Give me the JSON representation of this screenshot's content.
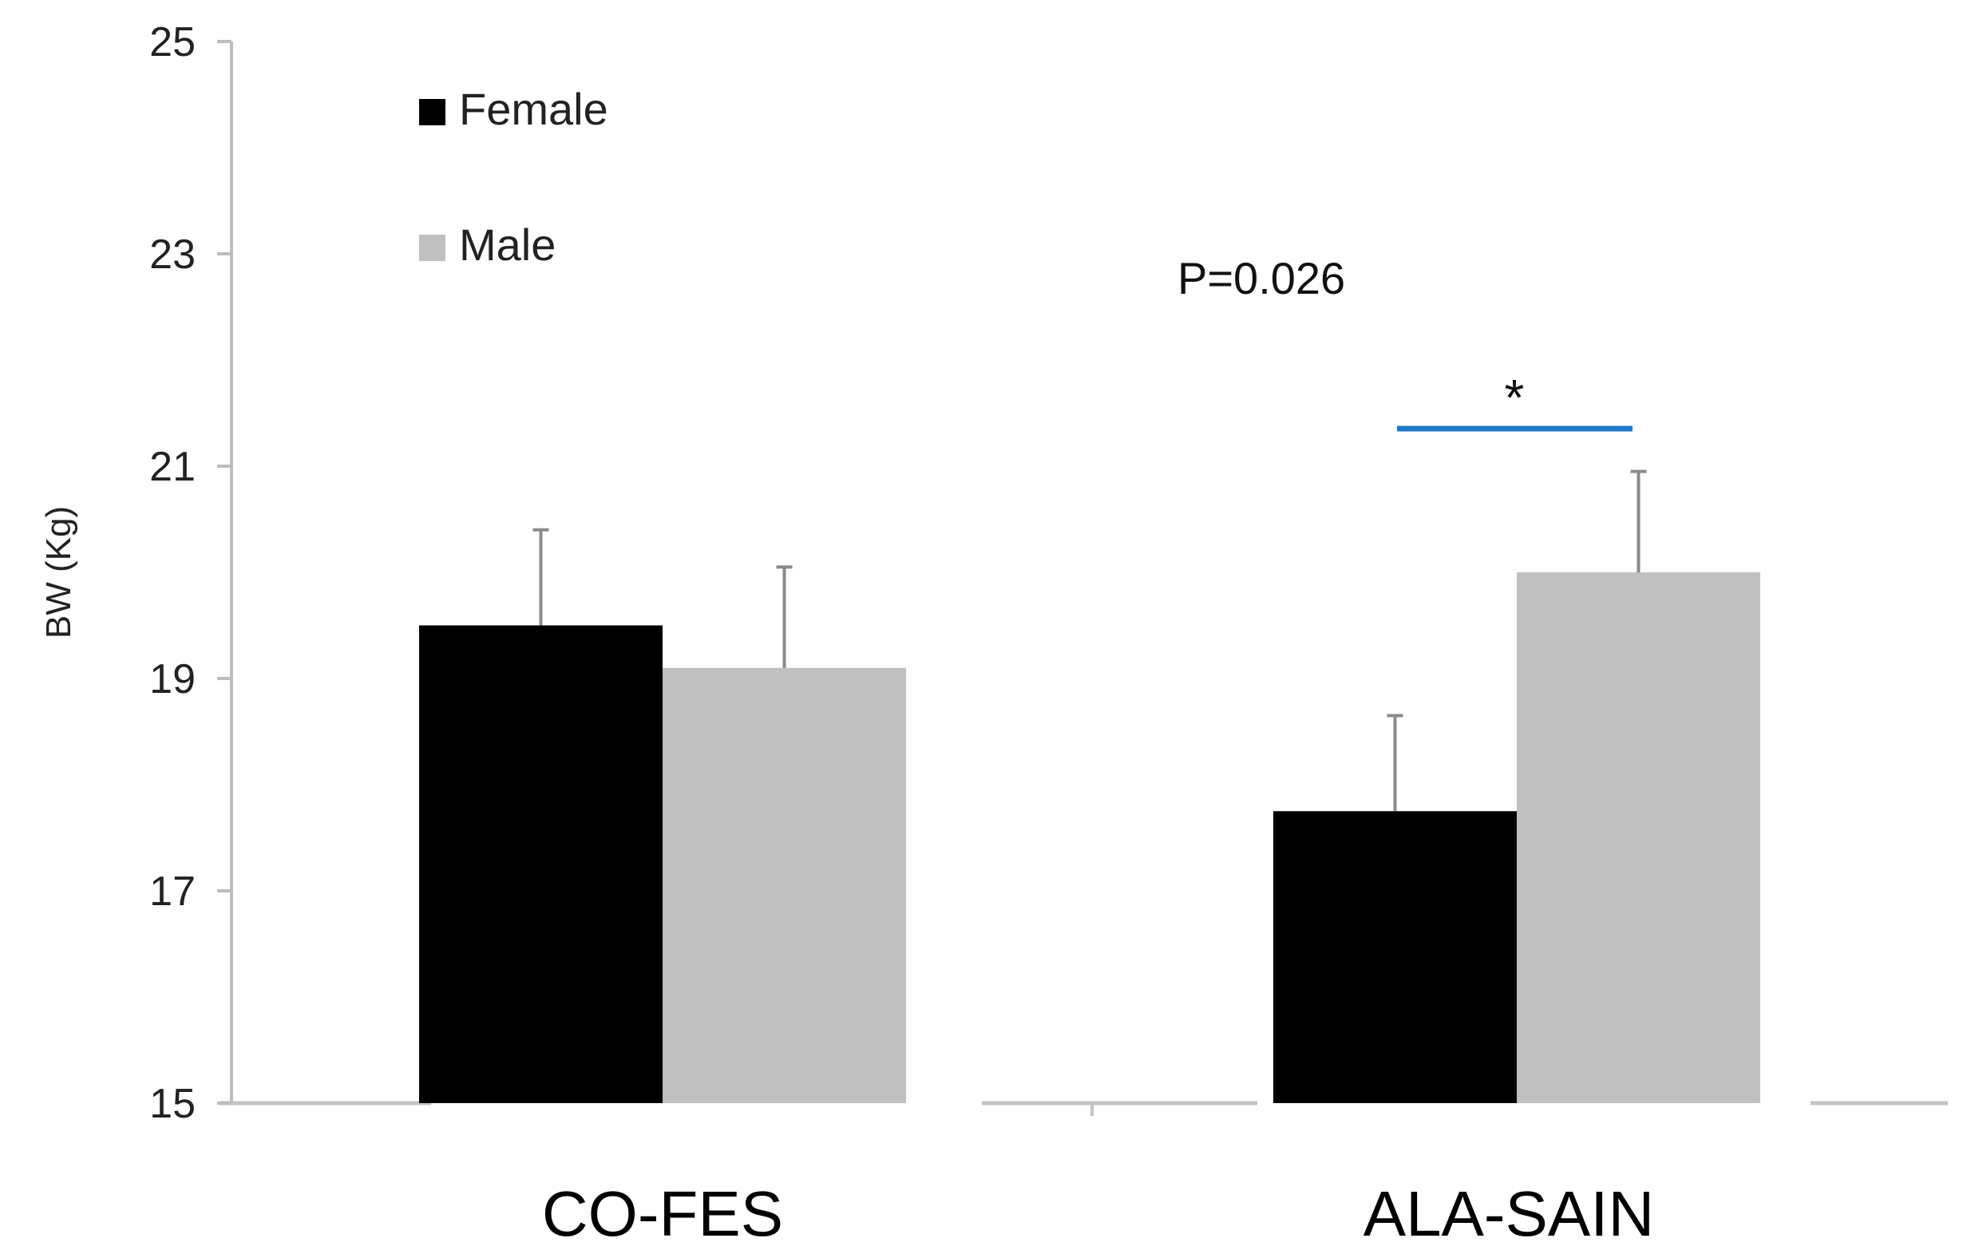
{
  "chart_data": {
    "type": "bar",
    "title": "",
    "xlabel": "",
    "ylabel": "BW (Kg)",
    "ylim": [
      15,
      25
    ],
    "yticks": [
      15,
      17,
      19,
      21,
      23,
      25
    ],
    "grid": false,
    "categories": [
      "CO-FES",
      "ALA-SAIN"
    ],
    "series": [
      {
        "name": "Female",
        "color": "#000000",
        "values": [
          19.5,
          17.75
        ],
        "errors": [
          0.9,
          0.9
        ]
      },
      {
        "name": "Male",
        "color": "#c0c0c0",
        "values": [
          19.1,
          20.0
        ],
        "errors": [
          0.95,
          0.95
        ]
      }
    ],
    "legend": {
      "placement": "top-left",
      "entries": [
        "Female",
        "Male"
      ]
    },
    "annotations": {
      "p_value": "P=0.026",
      "significance_marker": "*",
      "significance_category": "ALA-SAIN",
      "significance_line_color": "#1f78c8"
    }
  }
}
